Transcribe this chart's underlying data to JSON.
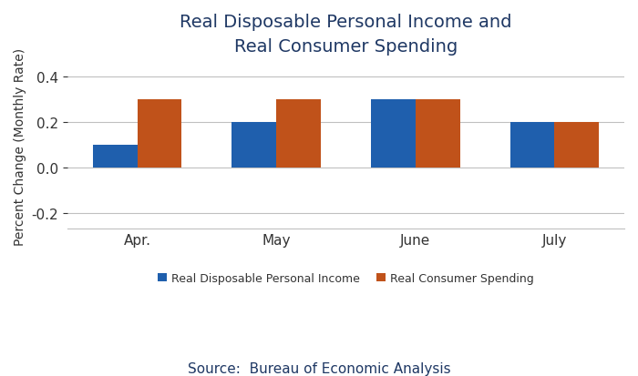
{
  "title_line1": "Real Disposable Personal Income and",
  "title_line2": "Real Consumer Spending",
  "categories": [
    "Apr.",
    "May",
    "June",
    "July"
  ],
  "income_values": [
    0.1,
    0.2,
    0.3,
    0.2
  ],
  "spending_values": [
    0.3,
    0.3,
    0.3,
    0.2
  ],
  "income_color": "#1F5FAD",
  "spending_color": "#C0521A",
  "ylabel": "Percent Change (Monthly Rate)",
  "ylim": [
    -0.27,
    0.46
  ],
  "yticks": [
    -0.2,
    0.0,
    0.2,
    0.4
  ],
  "legend_labels": [
    "Real Disposable Personal Income",
    "Real Consumer Spending"
  ],
  "source_text": "Source:  Bureau of Economic Analysis",
  "title_color": "#1F3864",
  "title_fontsize": 14,
  "ylabel_fontsize": 10,
  "tick_fontsize": 11,
  "legend_fontsize": 9,
  "source_fontsize": 11,
  "bar_width": 0.32,
  "background_color": "#ffffff"
}
